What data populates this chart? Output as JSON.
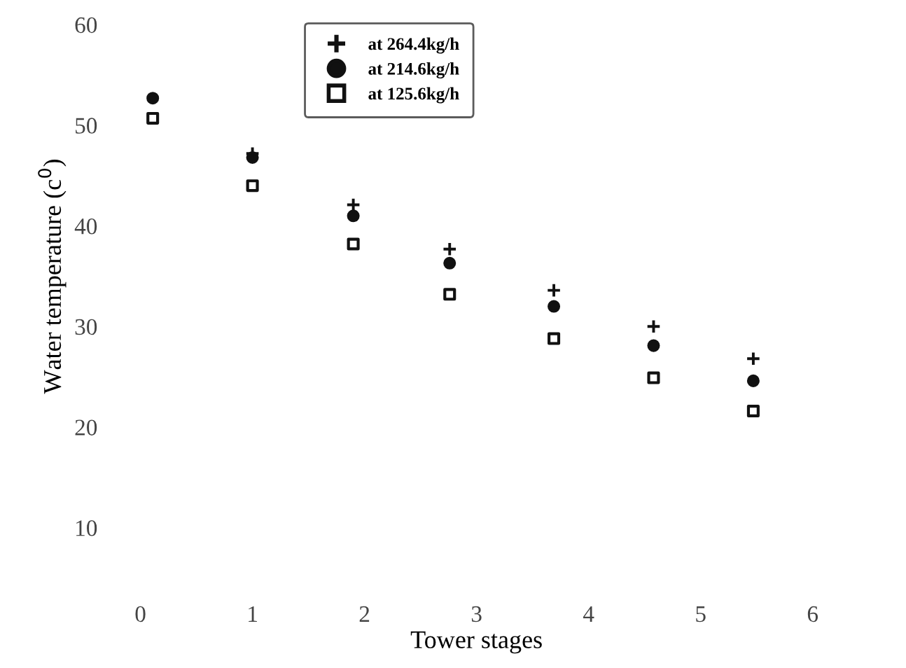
{
  "chart_data": {
    "type": "scatter",
    "xlabel": "Tower stages",
    "ylabel": "Water temperature (c$^{0}$)",
    "xlim": [
      0,
      6
    ],
    "ylim": [
      10,
      60
    ],
    "xticks": [
      0,
      1,
      2,
      3,
      4,
      5,
      6
    ],
    "yticks": [
      10,
      20,
      30,
      40,
      50,
      60
    ],
    "grid": false,
    "legend": "top",
    "series": [
      {
        "name": "at 264.4kg/h",
        "color": "#111111",
        "marker": "cross",
        "x": [
          1.0,
          1.9,
          2.76,
          3.69,
          4.58,
          5.47
        ],
        "values": [
          47.2,
          42.1,
          37.7,
          33.6,
          30.0,
          26.8
        ]
      },
      {
        "name": "at 214.6kg/h",
        "color": "#111111",
        "marker": "circle",
        "x": [
          0.11,
          1.0,
          1.9,
          2.76,
          3.69,
          4.58,
          5.47
        ],
        "values": [
          52.7,
          46.8,
          41.0,
          36.3,
          32.0,
          28.1,
          24.6
        ]
      },
      {
        "name": "at 125.6kg/h",
        "color": "#111111",
        "marker": "square",
        "x": [
          0.11,
          1.0,
          1.9,
          2.76,
          3.69,
          4.58,
          5.47
        ],
        "values": [
          50.7,
          44.0,
          38.2,
          33.2,
          28.8,
          24.9,
          21.6
        ]
      }
    ]
  }
}
